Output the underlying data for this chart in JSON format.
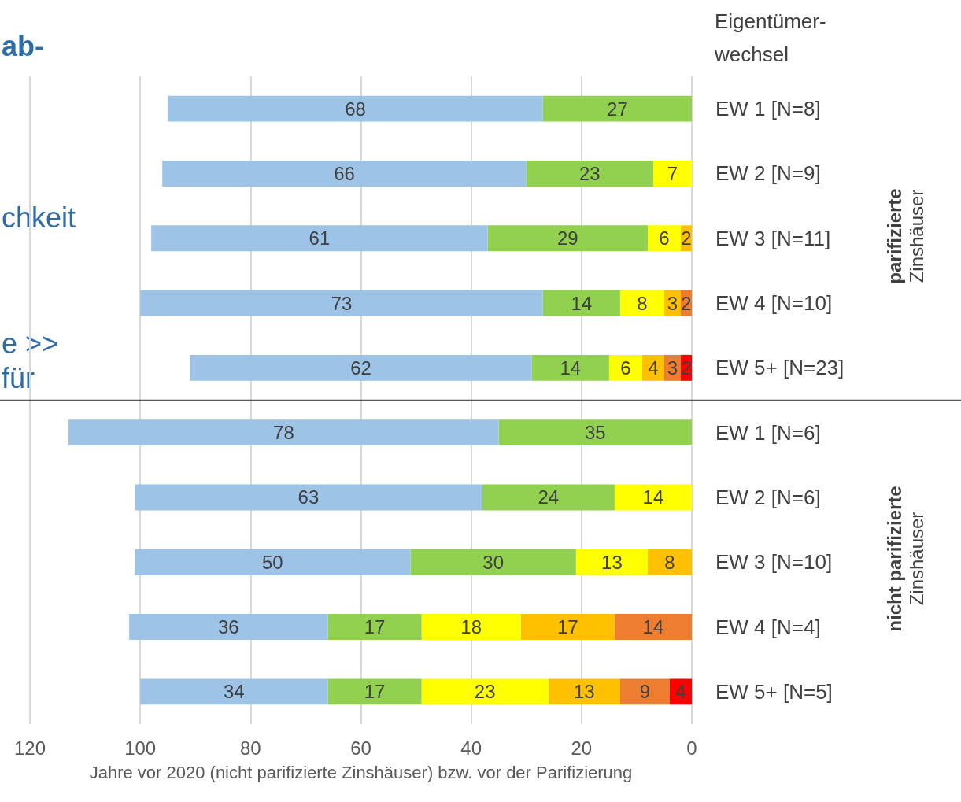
{
  "chart_data": {
    "type": "bar",
    "orientation": "horizontal",
    "stacked": true,
    "data_labels": true,
    "grid": "x",
    "xlabel": "Jahre vor 2020 (nicht parifizierte Zinshäuser) bzw. vor der Parifizierung",
    "ylabel": "Eigentümer-\nwechsel",
    "xlim": [
      120,
      0
    ],
    "xticks": [
      120,
      100,
      80,
      60,
      40,
      20,
      0
    ],
    "categories": [
      "EW 1 [N=8]",
      "EW 2 [N=9]",
      "EW 3 [N=11]",
      "EW 4 [N=10]",
      "EW 5+ [N=23]",
      "EW 1 [N=6]",
      "EW 2 [N=6]",
      "EW 3 [N=10]",
      "EW 4 [N=4]",
      "EW 5+ [N=5]"
    ],
    "series": [
      {
        "color": "#ff0000",
        "values": [
          null,
          null,
          null,
          null,
          2,
          null,
          null,
          null,
          null,
          4
        ]
      },
      {
        "color": "#ed7d31",
        "values": [
          null,
          null,
          null,
          2,
          3,
          null,
          null,
          null,
          14,
          9
        ]
      },
      {
        "color": "#ffc000",
        "values": [
          null,
          null,
          2,
          3,
          4,
          null,
          null,
          8,
          17,
          13
        ]
      },
      {
        "color": "#ffff00",
        "values": [
          null,
          7,
          6,
          8,
          6,
          null,
          14,
          13,
          18,
          23
        ]
      },
      {
        "color": "#92d050",
        "values": [
          27,
          23,
          29,
          14,
          14,
          35,
          24,
          30,
          17,
          17
        ]
      },
      {
        "color": "#9dc3e6",
        "values": [
          68,
          66,
          61,
          73,
          62,
          78,
          63,
          50,
          36,
          34
        ]
      }
    ],
    "ref_lines": [
      {
        "axis": "y",
        "value": "EW 1 [N=6]",
        "color": "#595959"
      }
    ],
    "annotations": [
      "ab-",
      "chkeit",
      "e >>",
      "für",
      "parifizierte\nZinshäuser",
      "nicht parifizierte\nZinshäuser"
    ]
  }
}
